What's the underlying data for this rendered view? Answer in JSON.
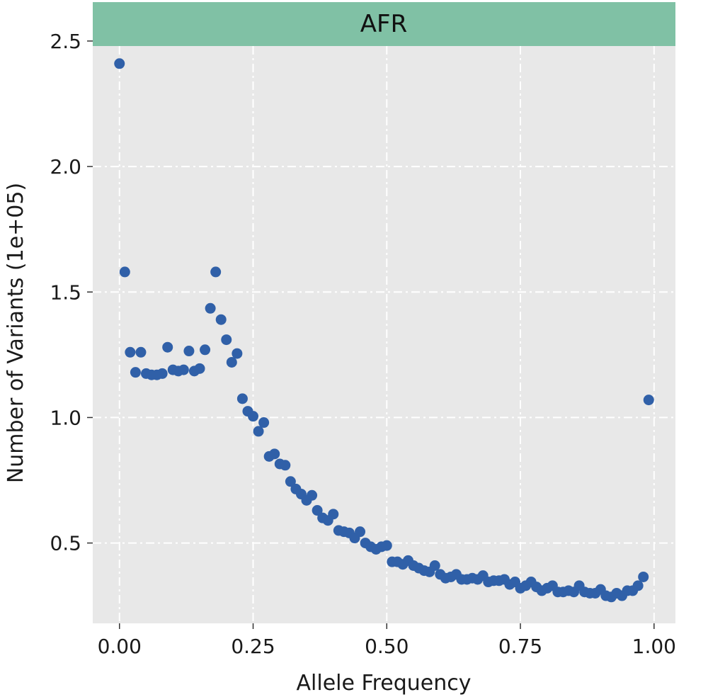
{
  "chart_data": {
    "type": "scatter",
    "facet_label": "AFR",
    "xlabel": "Allele Frequency",
    "ylabel": "Number of Variants (1e+05)",
    "xlim": [
      -0.05,
      1.04
    ],
    "ylim": [
      0.18,
      2.48
    ],
    "x_ticks": [
      0.0,
      0.25,
      0.5,
      0.75,
      1.0
    ],
    "x_tick_labels": [
      "0.00",
      "0.25",
      "0.50",
      "0.75",
      "1.00"
    ],
    "y_ticks": [
      0.5,
      1.0,
      1.5,
      2.0,
      2.5
    ],
    "y_tick_labels": [
      "0.5",
      "1.0",
      "1.5",
      "2.0",
      "2.5"
    ],
    "grid": "dash-dot white",
    "point_color": "#3060a8",
    "panel_color": "#e8e8e8",
    "strip_color": "#80c1a5",
    "points": [
      [
        0.0,
        2.41
      ],
      [
        0.01,
        1.58
      ],
      [
        0.02,
        1.26
      ],
      [
        0.03,
        1.18
      ],
      [
        0.04,
        1.26
      ],
      [
        0.05,
        1.175
      ],
      [
        0.06,
        1.17
      ],
      [
        0.07,
        1.17
      ],
      [
        0.08,
        1.175
      ],
      [
        0.09,
        1.28
      ],
      [
        0.1,
        1.19
      ],
      [
        0.11,
        1.185
      ],
      [
        0.12,
        1.19
      ],
      [
        0.13,
        1.265
      ],
      [
        0.14,
        1.185
      ],
      [
        0.15,
        1.195
      ],
      [
        0.16,
        1.27
      ],
      [
        0.17,
        1.435
      ],
      [
        0.18,
        1.58
      ],
      [
        0.19,
        1.39
      ],
      [
        0.2,
        1.31
      ],
      [
        0.21,
        1.22
      ],
      [
        0.22,
        1.255
      ],
      [
        0.23,
        1.075
      ],
      [
        0.24,
        1.025
      ],
      [
        0.25,
        1.005
      ],
      [
        0.26,
        0.945
      ],
      [
        0.27,
        0.98
      ],
      [
        0.28,
        0.845
      ],
      [
        0.29,
        0.855
      ],
      [
        0.3,
        0.815
      ],
      [
        0.31,
        0.81
      ],
      [
        0.32,
        0.745
      ],
      [
        0.33,
        0.715
      ],
      [
        0.34,
        0.695
      ],
      [
        0.35,
        0.67
      ],
      [
        0.36,
        0.69
      ],
      [
        0.37,
        0.63
      ],
      [
        0.38,
        0.6
      ],
      [
        0.39,
        0.59
      ],
      [
        0.4,
        0.615
      ],
      [
        0.41,
        0.55
      ],
      [
        0.42,
        0.545
      ],
      [
        0.43,
        0.54
      ],
      [
        0.44,
        0.52
      ],
      [
        0.45,
        0.545
      ],
      [
        0.46,
        0.5
      ],
      [
        0.47,
        0.485
      ],
      [
        0.48,
        0.475
      ],
      [
        0.49,
        0.485
      ],
      [
        0.5,
        0.49
      ],
      [
        0.51,
        0.425
      ],
      [
        0.52,
        0.425
      ],
      [
        0.53,
        0.415
      ],
      [
        0.54,
        0.43
      ],
      [
        0.55,
        0.41
      ],
      [
        0.56,
        0.4
      ],
      [
        0.57,
        0.39
      ],
      [
        0.58,
        0.385
      ],
      [
        0.59,
        0.41
      ],
      [
        0.6,
        0.375
      ],
      [
        0.61,
        0.36
      ],
      [
        0.62,
        0.365
      ],
      [
        0.63,
        0.375
      ],
      [
        0.64,
        0.355
      ],
      [
        0.65,
        0.355
      ],
      [
        0.66,
        0.36
      ],
      [
        0.67,
        0.355
      ],
      [
        0.68,
        0.37
      ],
      [
        0.69,
        0.345
      ],
      [
        0.7,
        0.35
      ],
      [
        0.71,
        0.35
      ],
      [
        0.72,
        0.355
      ],
      [
        0.73,
        0.335
      ],
      [
        0.74,
        0.345
      ],
      [
        0.75,
        0.32
      ],
      [
        0.76,
        0.33
      ],
      [
        0.77,
        0.345
      ],
      [
        0.78,
        0.325
      ],
      [
        0.79,
        0.31
      ],
      [
        0.8,
        0.32
      ],
      [
        0.81,
        0.33
      ],
      [
        0.82,
        0.305
      ],
      [
        0.83,
        0.305
      ],
      [
        0.84,
        0.31
      ],
      [
        0.85,
        0.305
      ],
      [
        0.86,
        0.33
      ],
      [
        0.87,
        0.305
      ],
      [
        0.88,
        0.3
      ],
      [
        0.89,
        0.3
      ],
      [
        0.9,
        0.315
      ],
      [
        0.91,
        0.29
      ],
      [
        0.92,
        0.285
      ],
      [
        0.93,
        0.3
      ],
      [
        0.94,
        0.29
      ],
      [
        0.95,
        0.31
      ],
      [
        0.96,
        0.31
      ],
      [
        0.97,
        0.33
      ],
      [
        0.98,
        0.365
      ],
      [
        0.99,
        1.07
      ]
    ]
  }
}
